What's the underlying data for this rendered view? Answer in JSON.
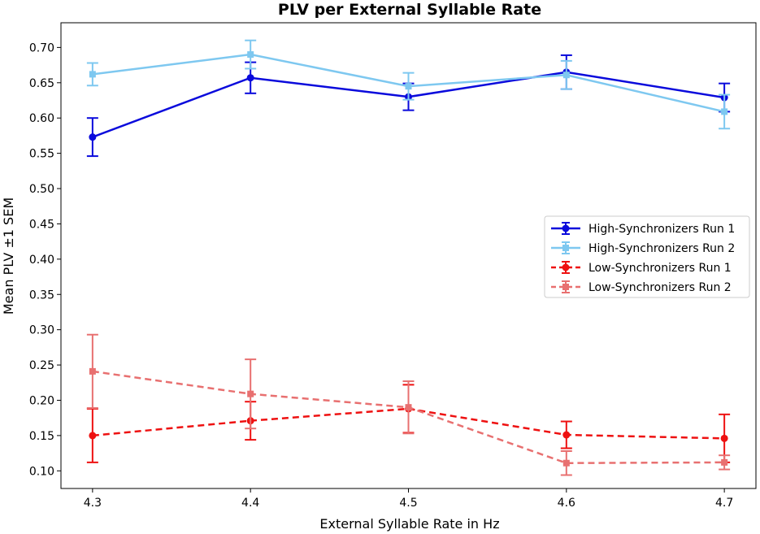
{
  "chart_data": {
    "type": "line",
    "title": "PLV per External Syllable Rate",
    "xlabel": "External Syllable Rate in Hz",
    "ylabel": "Mean PLV ±1 SEM",
    "x": [
      4.3,
      4.4,
      4.5,
      4.6,
      4.7
    ],
    "x_tick_labels": [
      "4.3",
      "4.4",
      "4.5",
      "4.6",
      "4.7"
    ],
    "xlim": [
      4.28,
      4.72
    ],
    "ylim": [
      0.075,
      0.735
    ],
    "y_ticks": [
      0.1,
      0.15,
      0.2,
      0.25,
      0.3,
      0.35,
      0.4,
      0.45,
      0.5,
      0.55,
      0.6,
      0.65,
      0.7
    ],
    "y_tick_labels": [
      "0.10",
      "0.15",
      "0.20",
      "0.25",
      "0.30",
      "0.35",
      "0.40",
      "0.45",
      "0.50",
      "0.55",
      "0.60",
      "0.65",
      "0.70"
    ],
    "grid": false,
    "legend_position": "center-right",
    "series": [
      {
        "name": "High-Synchronizers Run 1",
        "color": "#0a0adc",
        "line_style": "solid",
        "marker": "circle",
        "values": [
          0.573,
          0.657,
          0.63,
          0.665,
          0.629
        ],
        "err": [
          0.027,
          0.022,
          0.019,
          0.024,
          0.02
        ]
      },
      {
        "name": "High-Synchronizers Run 2",
        "color": "#7ec8f0",
        "line_style": "solid",
        "marker": "square",
        "values": [
          0.662,
          0.69,
          0.645,
          0.661,
          0.609
        ],
        "err": [
          0.016,
          0.02,
          0.019,
          0.02,
          0.024
        ]
      },
      {
        "name": "Low-Synchronizers Run 1",
        "color": "#ee1111",
        "line_style": "dashed",
        "marker": "circle",
        "values": [
          0.15,
          0.171,
          0.188,
          0.151,
          0.146
        ],
        "err": [
          0.038,
          0.027,
          0.034,
          0.019,
          0.034
        ]
      },
      {
        "name": "Low-Synchronizers Run 2",
        "color": "#e87070",
        "line_style": "dashed",
        "marker": "square",
        "values": [
          0.241,
          0.209,
          0.19,
          0.111,
          0.112
        ],
        "err": [
          0.052,
          0.049,
          0.037,
          0.017,
          0.01
        ]
      }
    ]
  }
}
